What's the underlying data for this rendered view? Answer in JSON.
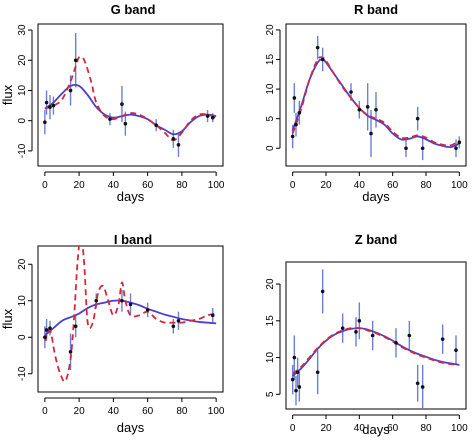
{
  "chart_data": [
    {
      "type": "line",
      "title": "G band",
      "xlabel": "days",
      "ylabel": "flux",
      "xlim": [
        -4,
        104
      ],
      "ylim": [
        -15,
        32
      ],
      "xticks": [
        0,
        20,
        40,
        60,
        80,
        100
      ],
      "yticks": [
        -10,
        0,
        10,
        20,
        30
      ],
      "observations": [
        {
          "x": 0,
          "y": -0.5,
          "err": 4
        },
        {
          "x": 1,
          "y": 6,
          "err": 4
        },
        {
          "x": 3,
          "y": 4.5,
          "err": 4
        },
        {
          "x": 5,
          "y": 5,
          "err": 3
        },
        {
          "x": 15,
          "y": 10,
          "err": 5
        },
        {
          "x": 18,
          "y": 20,
          "err": 9
        },
        {
          "x": 38,
          "y": 0.5,
          "err": 2
        },
        {
          "x": 45,
          "y": 5.5,
          "err": 6
        },
        {
          "x": 47,
          "y": -1,
          "err": 4
        },
        {
          "x": 65,
          "y": -1.5,
          "err": 2
        },
        {
          "x": 75,
          "y": -6,
          "err": 3
        },
        {
          "x": 78,
          "y": -8,
          "err": 4
        },
        {
          "x": 95,
          "y": 1.5,
          "err": 2
        },
        {
          "x": 98,
          "y": 1,
          "err": 1.5
        }
      ],
      "series": [
        {
          "style": "solid",
          "color": "#4b3fd0",
          "x": [
            0,
            5,
            10,
            15,
            20,
            25,
            30,
            35,
            40,
            45,
            50,
            55,
            60,
            65,
            70,
            75,
            80,
            85,
            90,
            95,
            100
          ],
          "y": [
            4,
            6,
            9,
            11.5,
            11.5,
            8.5,
            4.5,
            2,
            1,
            1.5,
            2,
            1.5,
            0.5,
            -1.5,
            -3,
            -4.5,
            -3.5,
            -0.5,
            1.5,
            2,
            1.5
          ]
        },
        {
          "style": "dashed",
          "color": "#d6273a",
          "x": [
            0,
            5,
            10,
            15,
            18,
            20,
            23,
            27,
            30,
            35,
            40,
            45,
            50,
            55,
            60,
            65,
            70,
            75,
            80,
            85,
            90,
            95,
            100
          ],
          "y": [
            4,
            5,
            7,
            13,
            18,
            21,
            20,
            13,
            6,
            1.5,
            0.5,
            1.5,
            2.5,
            2,
            0.5,
            -1.5,
            -4,
            -6.5,
            -4,
            0,
            2,
            2,
            1
          ]
        }
      ]
    },
    {
      "type": "line",
      "title": "R band",
      "xlabel": "days",
      "ylabel": "",
      "xlim": [
        -4,
        104
      ],
      "ylim": [
        -3,
        21
      ],
      "xticks": [
        0,
        20,
        40,
        60,
        80,
        100
      ],
      "yticks": [
        0,
        5,
        10,
        15,
        20
      ],
      "observations": [
        {
          "x": 0,
          "y": 2,
          "err": 2
        },
        {
          "x": 1,
          "y": 8.5,
          "err": 2.5
        },
        {
          "x": 2,
          "y": 4,
          "err": 2
        },
        {
          "x": 4,
          "y": 6,
          "err": 2
        },
        {
          "x": 15,
          "y": 17,
          "err": 2
        },
        {
          "x": 18,
          "y": 15,
          "err": 2
        },
        {
          "x": 35,
          "y": 9.5,
          "err": 1.5
        },
        {
          "x": 40,
          "y": 6.5,
          "err": 1.5
        },
        {
          "x": 45,
          "y": 7,
          "err": 4
        },
        {
          "x": 47,
          "y": 2.5,
          "err": 4
        },
        {
          "x": 50,
          "y": 6.5,
          "err": 3
        },
        {
          "x": 68,
          "y": 0,
          "err": 1.5
        },
        {
          "x": 75,
          "y": 5,
          "err": 2
        },
        {
          "x": 78,
          "y": 0,
          "err": 2
        },
        {
          "x": 98,
          "y": 0,
          "err": 1.5
        },
        {
          "x": 100,
          "y": 1,
          "err": 1
        }
      ],
      "series": [
        {
          "style": "solid",
          "color": "#4b3fd0",
          "x": [
            0,
            5,
            10,
            15,
            18,
            20,
            25,
            30,
            35,
            40,
            45,
            50,
            55,
            60,
            65,
            70,
            75,
            80,
            85,
            90,
            95,
            100
          ],
          "y": [
            3,
            7,
            11.5,
            14.5,
            15,
            14.5,
            12.5,
            10.5,
            8.5,
            6.8,
            5.5,
            4.8,
            4,
            2.5,
            1.5,
            1.6,
            2,
            1.5,
            0.8,
            0.4,
            0.2,
            0.8
          ]
        },
        {
          "style": "dashed",
          "color": "#d6273a",
          "x": [
            0,
            5,
            10,
            15,
            18,
            20,
            25,
            30,
            35,
            40,
            45,
            50,
            55,
            60,
            65,
            70,
            75,
            80,
            85,
            90,
            95,
            100
          ],
          "y": [
            2.5,
            6.5,
            11.5,
            15,
            15.3,
            14.8,
            12.5,
            10.3,
            8.5,
            6.8,
            5.6,
            5,
            4.3,
            2.8,
            1.8,
            1.8,
            2.2,
            1.8,
            1,
            0.6,
            0.5,
            1.3
          ]
        }
      ]
    },
    {
      "type": "line",
      "title": "I band",
      "xlabel": "days",
      "ylabel": "flux",
      "xlim": [
        -4,
        104
      ],
      "ylim": [
        -15,
        25
      ],
      "xticks": [
        0,
        20,
        40,
        60,
        80,
        100
      ],
      "yticks": [
        -10,
        0,
        10,
        20
      ],
      "observations": [
        {
          "x": 0,
          "y": 0,
          "err": 3
        },
        {
          "x": 1,
          "y": 2,
          "err": 3
        },
        {
          "x": 3,
          "y": 2.5,
          "err": 2
        },
        {
          "x": 15,
          "y": -4,
          "err": 5
        },
        {
          "x": 18,
          "y": 3,
          "err": 3
        },
        {
          "x": 30,
          "y": 10,
          "err": 2
        },
        {
          "x": 45,
          "y": 10,
          "err": 3
        },
        {
          "x": 50,
          "y": 9,
          "err": 3
        },
        {
          "x": 60,
          "y": 7.5,
          "err": 2
        },
        {
          "x": 75,
          "y": 3,
          "err": 2
        },
        {
          "x": 78,
          "y": 4.5,
          "err": 2.5
        },
        {
          "x": 98,
          "y": 6,
          "err": 2
        }
      ],
      "series": [
        {
          "style": "solid",
          "color": "#4b3fd0",
          "x": [
            0,
            5,
            10,
            15,
            20,
            25,
            30,
            35,
            40,
            45,
            50,
            55,
            60,
            65,
            70,
            75,
            80,
            85,
            90,
            95,
            100
          ],
          "y": [
            0.5,
            2.5,
            4.5,
            5.5,
            6.5,
            8,
            9,
            9.5,
            10,
            10,
            9.5,
            8.8,
            7.8,
            7,
            6.2,
            5.6,
            5,
            4.6,
            4.2,
            4,
            3.8
          ]
        },
        {
          "style": "dashed",
          "color": "#d6273a",
          "x": [
            0,
            3,
            6,
            9,
            12,
            15,
            17,
            19,
            21,
            23,
            25,
            28,
            31,
            34,
            37,
            40,
            43,
            45,
            47,
            50,
            55,
            60,
            65,
            70,
            75,
            80,
            85,
            90,
            95,
            100
          ],
          "y": [
            -1,
            2,
            -5,
            -10,
            -12,
            -6,
            5,
            20,
            28,
            20,
            4,
            4,
            12,
            14,
            10,
            6,
            9,
            15,
            10,
            6,
            6,
            7,
            5,
            4,
            4,
            4,
            4.5,
            5,
            6,
            6.5
          ]
        }
      ]
    },
    {
      "type": "line",
      "title": "Z band",
      "xlabel": "days",
      "ylabel": "",
      "xlim": [
        -4,
        104
      ],
      "ylim": [
        3,
        23
      ],
      "xticks": [
        0,
        20,
        40,
        60,
        80,
        100
      ],
      "yticks": [
        5,
        10,
        15,
        20
      ],
      "observations": [
        {
          "x": 0,
          "y": 7,
          "err": 2
        },
        {
          "x": 1,
          "y": 10,
          "err": 3
        },
        {
          "x": 2,
          "y": 5.5,
          "err": 2
        },
        {
          "x": 3,
          "y": 8,
          "err": 2
        },
        {
          "x": 4,
          "y": 6,
          "err": 2
        },
        {
          "x": 15,
          "y": 8,
          "err": 3
        },
        {
          "x": 18,
          "y": 19,
          "err": 3
        },
        {
          "x": 30,
          "y": 14,
          "err": 2
        },
        {
          "x": 38,
          "y": 13.5,
          "err": 2
        },
        {
          "x": 40,
          "y": 15,
          "err": 2.5
        },
        {
          "x": 48,
          "y": 13,
          "err": 2
        },
        {
          "x": 62,
          "y": 12,
          "err": 2
        },
        {
          "x": 70,
          "y": 13,
          "err": 2
        },
        {
          "x": 75,
          "y": 6.5,
          "err": 2.5
        },
        {
          "x": 78,
          "y": 6,
          "err": 3
        },
        {
          "x": 90,
          "y": 12.5,
          "err": 2
        },
        {
          "x": 98,
          "y": 11,
          "err": 2
        }
      ],
      "series": [
        {
          "style": "solid",
          "color": "#4b3fd0",
          "x": [
            0,
            5,
            10,
            15,
            20,
            25,
            30,
            35,
            40,
            45,
            50,
            55,
            60,
            65,
            70,
            75,
            80,
            85,
            90,
            95,
            100
          ],
          "y": [
            7.5,
            8.5,
            9.8,
            11.2,
            12.3,
            13.1,
            13.6,
            13.9,
            14,
            13.8,
            13.4,
            12.9,
            12.3,
            11.6,
            11,
            10.5,
            10.1,
            9.7,
            9.4,
            9.2,
            9
          ]
        },
        {
          "style": "dashed",
          "color": "#d6273a",
          "x": [
            0,
            5,
            10,
            15,
            20,
            25,
            30,
            35,
            40,
            45,
            50,
            55,
            60,
            65,
            70,
            75,
            80,
            85,
            90,
            95,
            100
          ],
          "y": [
            7.8,
            8.7,
            10,
            11.3,
            12.4,
            13.2,
            13.7,
            14,
            14,
            13.7,
            13.3,
            12.8,
            12.2,
            11.5,
            10.9,
            10.4,
            10,
            9.6,
            9.3,
            9.1,
            9
          ]
        }
      ]
    }
  ]
}
